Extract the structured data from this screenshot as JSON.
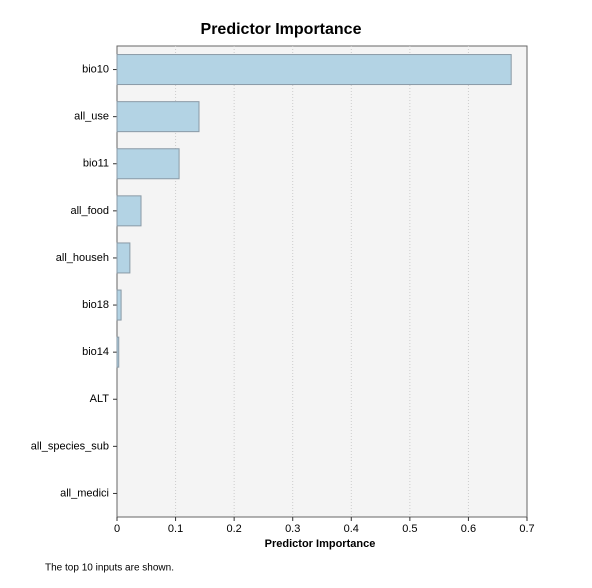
{
  "chart_data": {
    "type": "hbar",
    "title": "Predictor Importance",
    "x_label": "Predictor Importance",
    "footnote": "The top 10 inputs are shown.",
    "categories": [
      "bio10",
      "all_use",
      "bio11",
      "all_food",
      "all_househ",
      "bio18",
      "bio14",
      "ALT",
      "all_species_sub",
      "all_medici"
    ],
    "values": [
      0.673,
      0.14,
      0.106,
      0.041,
      0.022,
      0.007,
      0.003,
      0,
      0,
      0
    ],
    "color": "#b3d3e4",
    "xlim": [
      0,
      0.7
    ],
    "xticks": [
      0,
      0.1,
      0.2,
      0.3,
      0.4,
      0.5,
      0.6,
      0.7
    ],
    "grid": true
  }
}
